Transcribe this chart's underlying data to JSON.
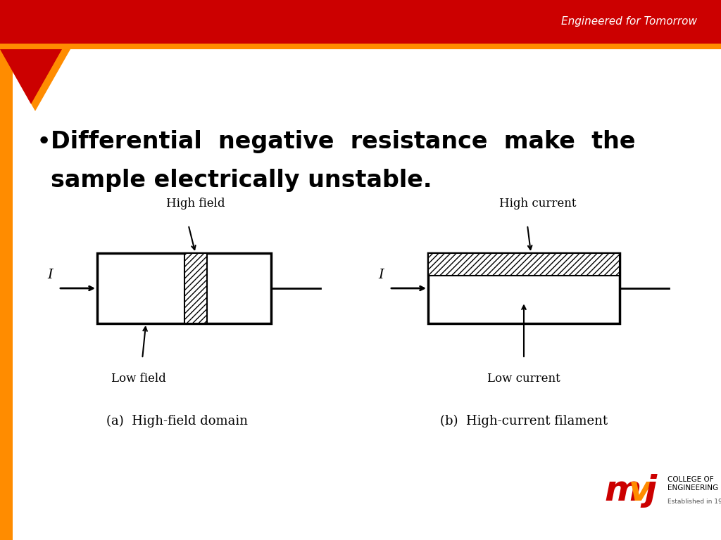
{
  "header_text": "Engineered for Tomorrow",
  "header_bg_color": "#CC0000",
  "header_accent_color": "#FF8C00",
  "bg_color": "#FFFFFF",
  "bullet_text_line1": "Differential  negative  resistance  make  the",
  "bullet_text_line2": "sample electrically unstable.",
  "diagram_a_label": "(a)  High-field domain",
  "diagram_b_label": "(b)  High-current filament",
  "diagram_a_high_label": "High field",
  "diagram_a_low_label": "Low field",
  "diagram_b_high_label": "High current",
  "diagram_b_low_label": "Low current"
}
